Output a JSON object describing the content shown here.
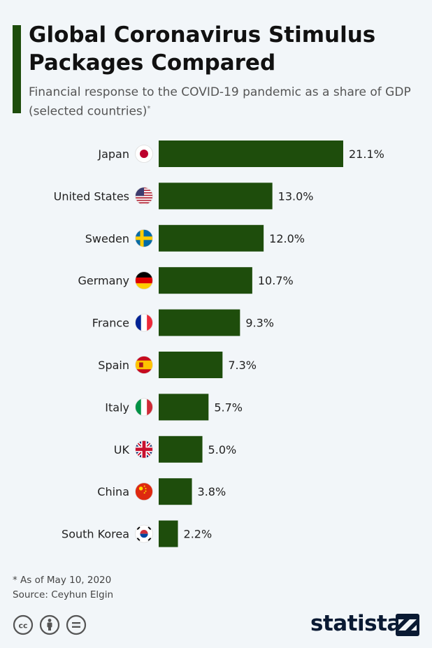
{
  "header": {
    "title": "Global Coronavirus Stimulus Packages Compared",
    "subtitle": "Financial response to the COVID-19 pandemic as a share of GDP (selected countries)",
    "subtitle_mark": "*"
  },
  "chart_data": {
    "type": "bar",
    "orientation": "horizontal",
    "categories": [
      "Japan",
      "United States",
      "Sweden",
      "Germany",
      "France",
      "Spain",
      "Italy",
      "UK",
      "China",
      "South Korea"
    ],
    "values": [
      21.1,
      13.0,
      12.0,
      10.7,
      9.3,
      7.3,
      5.7,
      5.0,
      3.8,
      2.2
    ],
    "value_labels": [
      "21.1%",
      "13.0%",
      "12.0%",
      "10.7%",
      "9.3%",
      "7.3%",
      "5.7%",
      "5.0%",
      "3.8%",
      "2.2%"
    ],
    "flags": [
      "japan-flag-icon",
      "us-flag-icon",
      "sweden-flag-icon",
      "germany-flag-icon",
      "france-flag-icon",
      "spain-flag-icon",
      "italy-flag-icon",
      "uk-flag-icon",
      "china-flag-icon",
      "south-korea-flag-icon"
    ],
    "bar_color": "#1e4d0c",
    "xlim": [
      0,
      21.1
    ],
    "grid": false,
    "legend": "none"
  },
  "footer": {
    "note": "* As of May 10, 2020",
    "source": "Source: Ceyhun Elgin",
    "brand": "statista",
    "license_icons": [
      "cc-icon",
      "by-icon",
      "nd-icon"
    ]
  }
}
